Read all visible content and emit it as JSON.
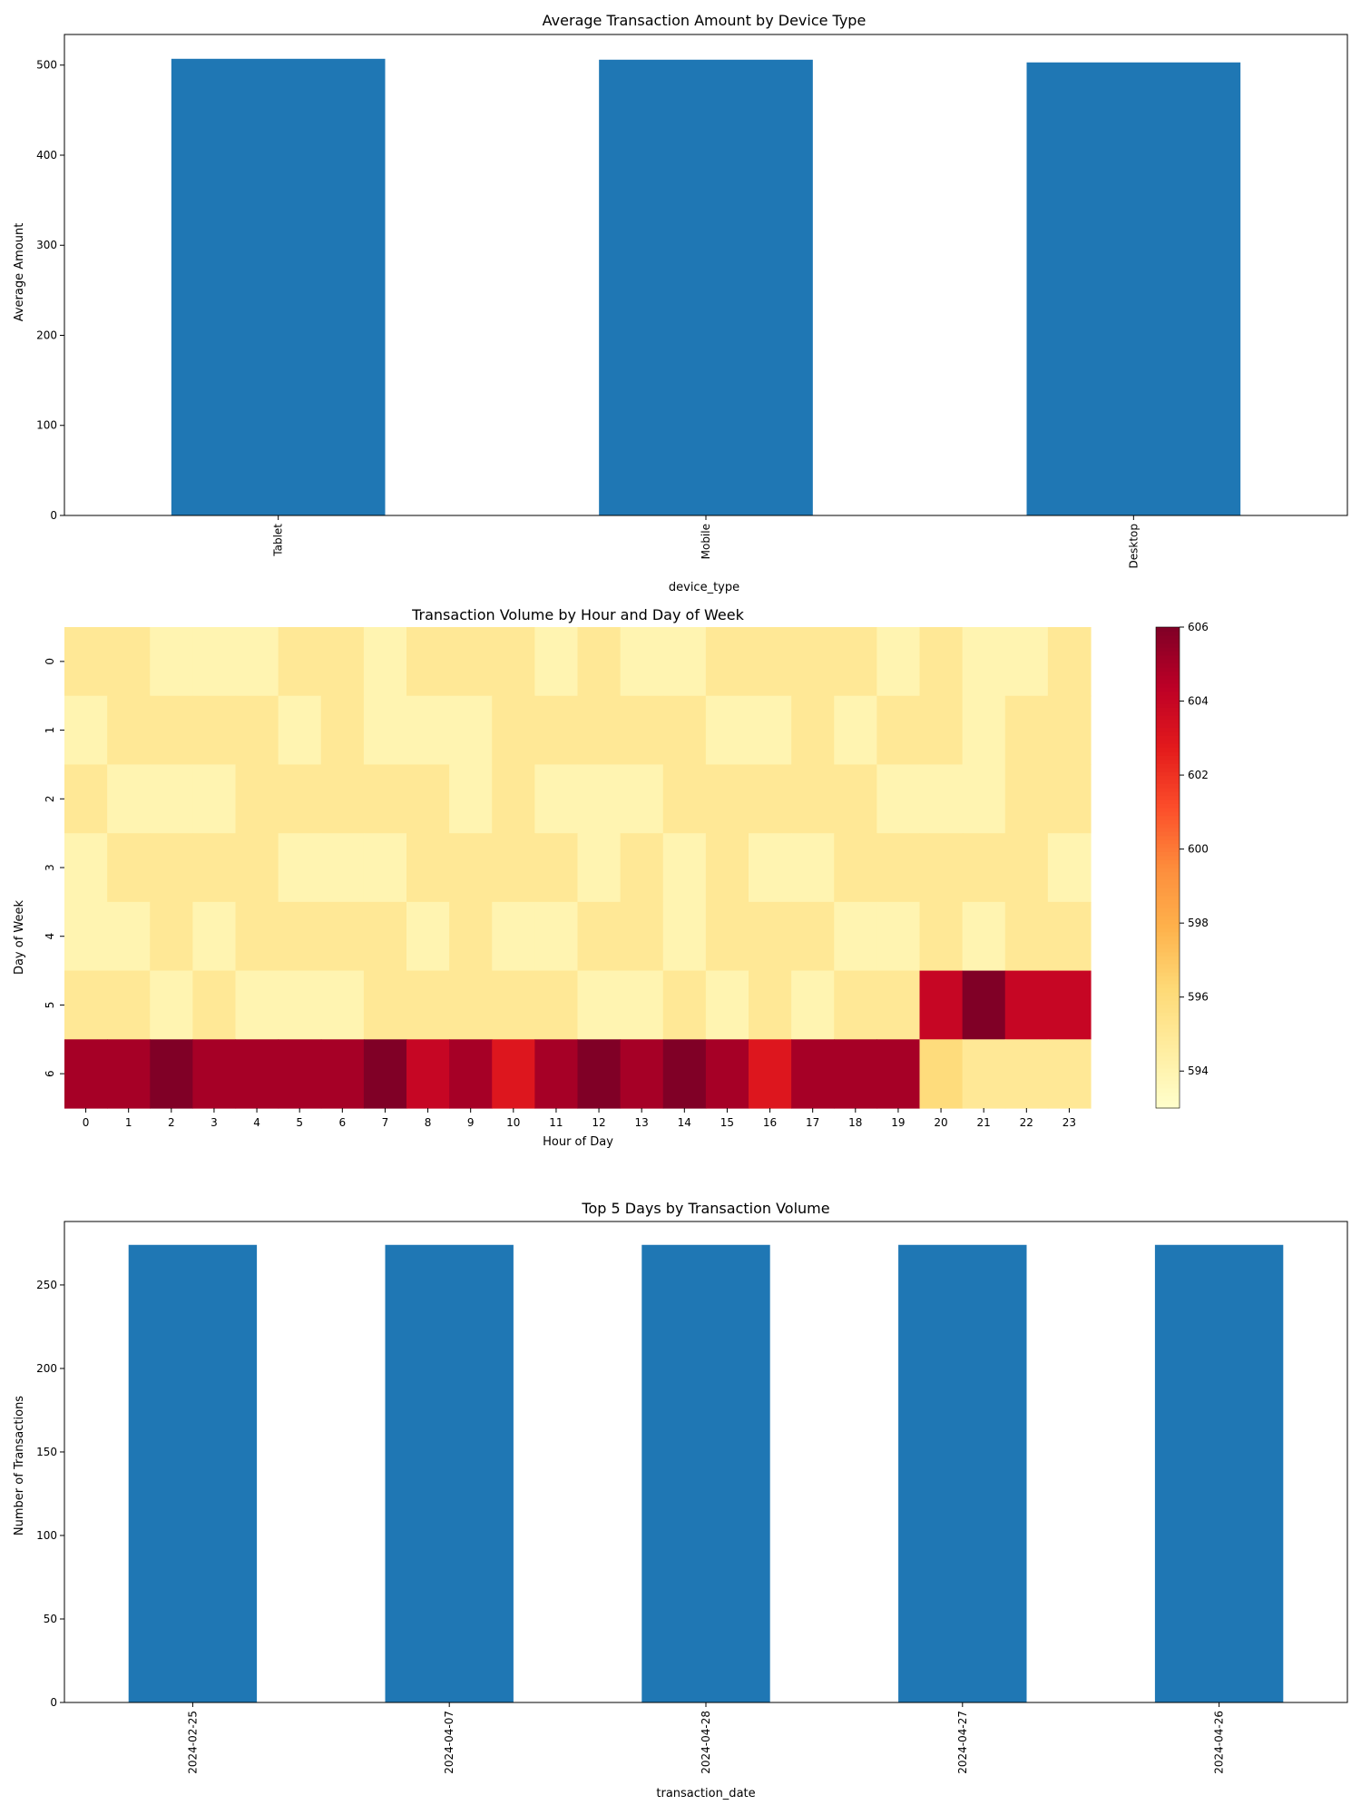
{
  "chart_data": [
    {
      "type": "bar",
      "title": "Average Transaction Amount by Device Type",
      "xlabel": "device_type",
      "ylabel": "Average Amount",
      "categories": [
        "Tablet",
        "Mobile",
        "Desktop"
      ],
      "values": [
        507,
        506,
        503
      ],
      "ylim": [
        0,
        534
      ],
      "yticks": [
        0,
        100,
        200,
        300,
        400,
        500
      ],
      "grid": false,
      "color": "#1f77b4"
    },
    {
      "type": "heatmap",
      "title": "Transaction Volume by Hour and Day of Week",
      "xlabel": "Hour of Day",
      "ylabel": "Day of Week",
      "x": [
        "0",
        "1",
        "2",
        "3",
        "4",
        "5",
        "6",
        "7",
        "8",
        "9",
        "10",
        "11",
        "12",
        "13",
        "14",
        "15",
        "16",
        "17",
        "18",
        "19",
        "20",
        "21",
        "22",
        "23"
      ],
      "y": [
        "0",
        "1",
        "2",
        "3",
        "4",
        "5",
        "6"
      ],
      "values": [
        [
          595,
          595,
          594,
          594,
          594,
          595,
          595,
          594,
          595,
          595,
          595,
          594,
          595,
          594,
          594,
          595,
          595,
          595,
          595,
          594,
          595,
          594,
          594,
          595
        ],
        [
          594,
          595,
          595,
          595,
          595,
          594,
          595,
          594,
          594,
          594,
          595,
          595,
          595,
          595,
          595,
          594,
          594,
          595,
          594,
          595,
          595,
          594,
          595,
          595
        ],
        [
          595,
          594,
          594,
          594,
          595,
          595,
          595,
          595,
          595,
          594,
          595,
          594,
          594,
          594,
          595,
          595,
          595,
          595,
          595,
          594,
          594,
          594,
          595,
          595
        ],
        [
          594,
          595,
          595,
          595,
          595,
          594,
          594,
          594,
          595,
          595,
          595,
          595,
          594,
          595,
          594,
          595,
          594,
          594,
          595,
          595,
          595,
          595,
          595,
          594
        ],
        [
          594,
          594,
          595,
          594,
          595,
          595,
          595,
          595,
          594,
          595,
          594,
          594,
          595,
          595,
          594,
          595,
          595,
          595,
          594,
          594,
          595,
          594,
          595,
          595
        ],
        [
          595,
          595,
          594,
          595,
          594,
          594,
          594,
          595,
          595,
          595,
          595,
          595,
          594,
          594,
          595,
          594,
          595,
          594,
          595,
          595,
          604,
          606,
          604,
          604
        ],
        [
          605,
          605,
          606,
          605,
          605,
          605,
          605,
          606,
          604,
          605,
          603,
          605,
          606,
          605,
          606,
          605,
          603,
          605,
          605,
          605,
          596,
          595,
          595,
          595
        ]
      ],
      "colorbar": {
        "min": 593,
        "max": 606,
        "ticks": [
          594,
          596,
          598,
          600,
          602,
          604,
          606
        ]
      },
      "colormap": [
        "#ffffcc",
        "#ffeda0",
        "#fed976",
        "#feb24c",
        "#fd8d3c",
        "#fc4e2a",
        "#e31a1c",
        "#bd0026",
        "#800026"
      ]
    },
    {
      "type": "bar",
      "title": "Top 5 Days by Transaction Volume",
      "xlabel": "transaction_date",
      "ylabel": "Number of Transactions",
      "categories": [
        "2024-02-25",
        "2024-04-07",
        "2024-04-28",
        "2024-04-27",
        "2024-04-26"
      ],
      "values": [
        274,
        274,
        274,
        274,
        274
      ],
      "ylim": [
        0,
        288
      ],
      "yticks": [
        0,
        50,
        100,
        150,
        200,
        250
      ],
      "grid": false,
      "color": "#1f77b4"
    }
  ]
}
